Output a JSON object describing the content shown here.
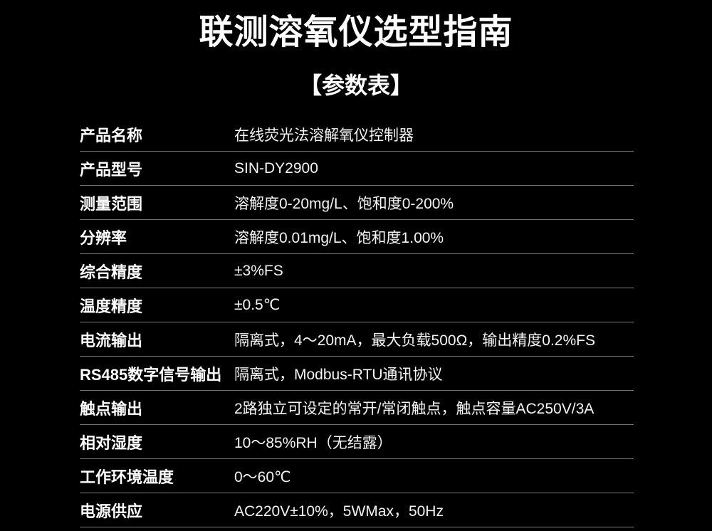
{
  "page": {
    "title": "联测溶氧仪选型指南",
    "subtitle": "【参数表】"
  },
  "colors": {
    "background": "#000000",
    "text": "#ffffff",
    "divider": "#757575"
  },
  "table": {
    "rows": [
      {
        "label": "产品名称",
        "value": "在线荧光法溶解氧仪控制器"
      },
      {
        "label": "产品型号",
        "value": "SIN-DY2900"
      },
      {
        "label": "测量范围",
        "value": "溶解度0-20mg/L、饱和度0-200%"
      },
      {
        "label": "分辨率",
        "value": "溶解度0.01mg/L、饱和度1.00%"
      },
      {
        "label": "综合精度",
        "value": "±3%FS"
      },
      {
        "label": "温度精度",
        "value": "±0.5℃"
      },
      {
        "label": "电流输出",
        "value": "隔离式，4～20mA，最大负载500Ω，输出精度0.2%FS"
      },
      {
        "label": "RS485数字信号输出",
        "value": "隔离式，Modbus-RTU通讯协议"
      },
      {
        "label": "触点输出",
        "value": "2路独立可设定的常开/常闭触点，触点容量AC250V/3A"
      },
      {
        "label": "相对湿度",
        "value": "10～85%RH（无结露）"
      },
      {
        "label": "工作环境温度",
        "value": "0～60℃"
      },
      {
        "label": "电源供应",
        "value": "AC220V±10%，5WMax，50Hz"
      }
    ]
  }
}
